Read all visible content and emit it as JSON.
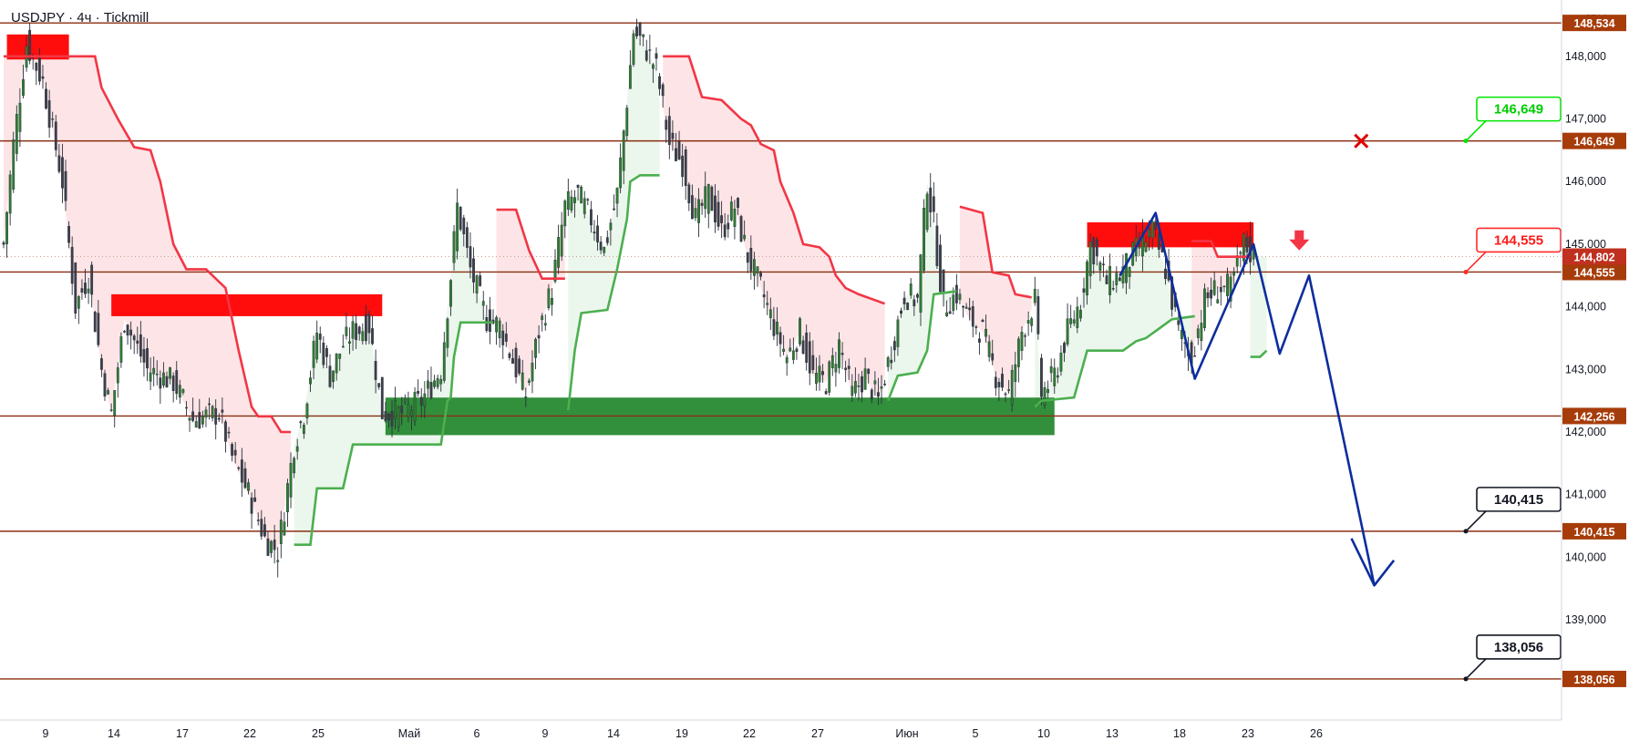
{
  "header": {
    "symbol_info": "USDJPY · 4ч · Tickmill",
    "currency": "JPY"
  },
  "colors": {
    "bull": "#4caf50",
    "bear": "#f23645",
    "level": "#8b2e12",
    "level_tag": "#a63c0a",
    "green_zone": "#21862b",
    "red_zone": "#ff0000",
    "forecast": "#0d2d9e",
    "up_fill": "#e9f6ea",
    "down_fill": "#fde2e4"
  },
  "chart_data": {
    "type": "candlestick",
    "title": "USDJPY · 4ч · Tickmill",
    "ylabel": "JPY",
    "ylim": [
      137.4,
      148.9
    ],
    "y_ticks": [
      {
        "v": 148.0,
        "label": "148,000"
      },
      {
        "v": 147.0,
        "label": "147,000"
      },
      {
        "v": 146.0,
        "label": "146,000"
      },
      {
        "v": 145.0,
        "label": "145,000"
      },
      {
        "v": 144.0,
        "label": "144,000"
      },
      {
        "v": 143.0,
        "label": "143,000"
      },
      {
        "v": 142.0,
        "label": "142,000"
      },
      {
        "v": 141.0,
        "label": "141,000"
      },
      {
        "v": 140.0,
        "label": "140,000"
      },
      {
        "v": 139.0,
        "label": "139,000"
      }
    ],
    "x_ticks": [
      "9",
      "14",
      "17",
      "22",
      "25",
      "Май",
      "6",
      "9",
      "14",
      "19",
      "22",
      "27",
      "Июн",
      "5",
      "10",
      "13",
      "18",
      "23",
      "26"
    ],
    "bar_count": 420,
    "levels": [
      {
        "v": 148.534,
        "label": "148,534"
      },
      {
        "v": 146.649,
        "label": "146,649"
      },
      {
        "v": 144.555,
        "label": "144,555"
      },
      {
        "v": 142.256,
        "label": "142,256"
      },
      {
        "v": 140.415,
        "label": "140,415"
      },
      {
        "v": 138.056,
        "label": "138,056"
      }
    ],
    "current_price": {
      "v": 144.802,
      "label": "144,802"
    },
    "callouts": [
      {
        "v": 146.649,
        "label": "146,649",
        "style": "green"
      },
      {
        "v": 144.555,
        "label": "144,555",
        "style": "red"
      },
      {
        "v": 140.415,
        "label": "140,415",
        "style": "black"
      },
      {
        "v": 138.056,
        "label": "138,056",
        "style": "black"
      }
    ],
    "zones": [
      {
        "kind": "supply",
        "x0": 1,
        "x1": 20,
        "y0": 148.35,
        "y1": 147.95
      },
      {
        "kind": "supply",
        "x0": 33,
        "x1": 116,
        "y0": 144.2,
        "y1": 143.85
      },
      {
        "kind": "demand",
        "x0": 117,
        "x1": 322,
        "y0": 142.55,
        "y1": 141.95
      },
      {
        "kind": "supply",
        "x0": 332,
        "x1": 383,
        "y0": 145.35,
        "y1": 144.95
      }
    ],
    "supertrend": [
      {
        "dir": "down",
        "pts": [
          [
            0,
            148.0
          ],
          [
            28,
            148.0
          ],
          [
            30,
            147.5
          ],
          [
            35,
            147.0
          ],
          [
            40,
            146.55
          ],
          [
            45,
            146.5
          ],
          [
            48,
            146.0
          ],
          [
            52,
            145.0
          ],
          [
            56,
            144.6
          ],
          [
            62,
            144.6
          ],
          [
            68,
            144.3
          ],
          [
            72,
            143.3
          ],
          [
            76,
            142.4
          ],
          [
            78,
            142.25
          ],
          [
            82,
            142.25
          ],
          [
            85,
            142.0
          ],
          [
            88,
            142.0
          ]
        ]
      },
      {
        "dir": "up",
        "pts": [
          [
            89,
            140.2
          ],
          [
            94,
            140.2
          ],
          [
            96,
            141.1
          ],
          [
            104,
            141.1
          ],
          [
            107,
            141.8
          ],
          [
            117,
            141.8
          ],
          [
            126,
            141.8
          ],
          [
            134,
            141.8
          ],
          [
            136,
            142.5
          ],
          [
            137,
            142.55
          ],
          [
            138,
            143.2
          ],
          [
            140,
            143.75
          ],
          [
            150,
            143.75
          ]
        ]
      },
      {
        "dir": "down",
        "pts": [
          [
            151,
            145.55
          ],
          [
            157,
            145.55
          ],
          [
            161,
            144.9
          ],
          [
            165,
            144.45
          ],
          [
            172,
            144.45
          ]
        ]
      },
      {
        "dir": "up",
        "pts": [
          [
            173,
            142.35
          ],
          [
            175,
            143.3
          ],
          [
            177,
            143.9
          ],
          [
            185,
            143.95
          ],
          [
            188,
            144.6
          ],
          [
            191,
            145.4
          ],
          [
            192,
            146.0
          ],
          [
            195,
            146.1
          ],
          [
            201,
            146.1
          ]
        ]
      },
      {
        "dir": "down",
        "pts": [
          [
            202,
            148.0
          ],
          [
            210,
            148.0
          ],
          [
            214,
            147.35
          ],
          [
            220,
            147.3
          ],
          [
            226,
            147.0
          ],
          [
            229,
            146.9
          ],
          [
            232,
            146.6
          ],
          [
            236,
            146.5
          ],
          [
            238,
            146.0
          ],
          [
            242,
            145.5
          ],
          [
            245,
            145.0
          ],
          [
            250,
            144.95
          ],
          [
            253,
            144.8
          ],
          [
            255,
            144.5
          ],
          [
            258,
            144.3
          ],
          [
            262,
            144.2
          ],
          [
            270,
            144.05
          ]
        ]
      },
      {
        "dir": "up",
        "pts": [
          [
            271,
            142.5
          ],
          [
            274,
            142.9
          ],
          [
            280,
            142.95
          ],
          [
            283,
            143.3
          ],
          [
            285,
            144.2
          ],
          [
            292,
            144.25
          ]
        ]
      },
      {
        "dir": "down",
        "pts": [
          [
            293,
            145.6
          ],
          [
            300,
            145.5
          ],
          [
            303,
            144.55
          ],
          [
            308,
            144.5
          ],
          [
            310,
            144.2
          ],
          [
            315,
            144.15
          ]
        ]
      },
      {
        "dir": "up",
        "pts": [
          [
            316,
            142.4
          ],
          [
            318,
            142.5
          ],
          [
            328,
            142.55
          ],
          [
            332,
            143.3
          ],
          [
            343,
            143.3
          ],
          [
            347,
            143.45
          ],
          [
            350,
            143.5
          ],
          [
            358,
            143.8
          ],
          [
            365,
            143.85
          ]
        ]
      },
      {
        "dir": "down",
        "pts": [
          [
            364,
            145.05
          ],
          [
            370,
            145.05
          ],
          [
            372,
            144.8
          ],
          [
            382,
            144.8
          ]
        ]
      },
      {
        "dir": "up",
        "pts": [
          [
            382,
            143.2
          ],
          [
            385,
            143.2
          ],
          [
            387,
            143.3
          ]
        ]
      }
    ],
    "forecast_path": [
      [
        342,
        144.5
      ],
      [
        353,
        145.5
      ],
      [
        365,
        142.85
      ],
      [
        383,
        145.0
      ],
      [
        391,
        143.25
      ],
      [
        400,
        144.5
      ],
      [
        420,
        139.55
      ],
      [
        426,
        139.95
      ]
    ],
    "forecast_arrow_head": [
      [
        420,
        139.55
      ],
      [
        413,
        140.3
      ]
    ],
    "markers": [
      {
        "kind": "cross",
        "x": 416,
        "v": 146.649
      },
      {
        "kind": "down-arrow",
        "x": 397,
        "v": 144.9
      }
    ]
  }
}
